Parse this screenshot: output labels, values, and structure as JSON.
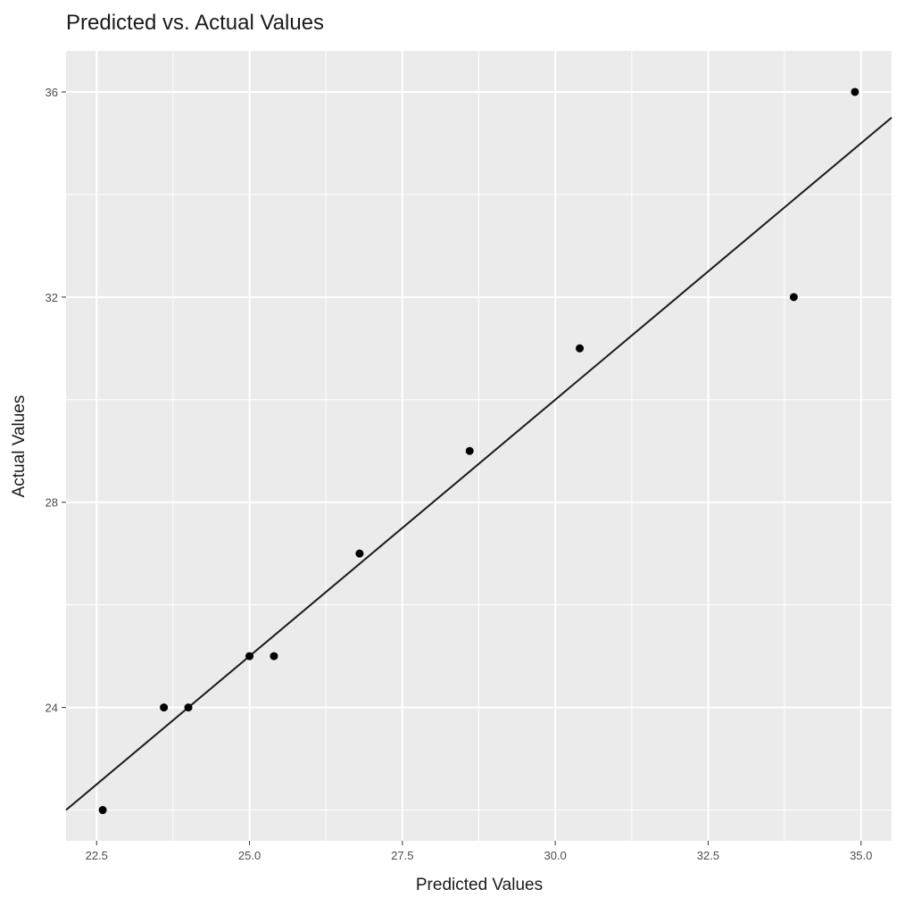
{
  "chart_data": {
    "type": "scatter",
    "title": "Predicted vs. Actual Values",
    "xlabel": "Predicted Values",
    "ylabel": "Actual Values",
    "xlim": [
      22.0,
      35.5
    ],
    "ylim": [
      21.4,
      36.8
    ],
    "x_ticks": [
      22.5,
      25.0,
      27.5,
      30.0,
      32.5,
      35.0
    ],
    "x_tick_labels": [
      "22.5",
      "25.0",
      "27.5",
      "30.0",
      "32.5",
      "35.0"
    ],
    "y_ticks": [
      24,
      28,
      32,
      36
    ],
    "y_tick_labels": [
      "24",
      "28",
      "32",
      "36"
    ],
    "grid": true,
    "points": [
      {
        "x": 22.6,
        "y": 22
      },
      {
        "x": 23.6,
        "y": 24
      },
      {
        "x": 24.0,
        "y": 24
      },
      {
        "x": 25.0,
        "y": 25
      },
      {
        "x": 25.4,
        "y": 25
      },
      {
        "x": 26.8,
        "y": 27
      },
      {
        "x": 28.6,
        "y": 29
      },
      {
        "x": 30.4,
        "y": 31
      },
      {
        "x": 33.9,
        "y": 32
      },
      {
        "x": 34.9,
        "y": 36
      }
    ],
    "reference_line": {
      "slope": 1,
      "intercept": 0
    },
    "colors": {
      "panel": "#ebebeb",
      "grid": "#ffffff",
      "point": "#000000",
      "line": "#1a1a1a"
    }
  }
}
